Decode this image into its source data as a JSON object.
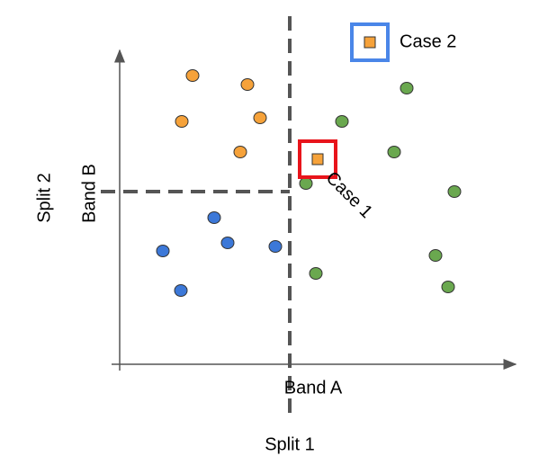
{
  "legend": {
    "label": "Case 2"
  },
  "annotation": {
    "label": "Case 1"
  },
  "axes": {
    "x_label": "Band A",
    "y_label": "Band B"
  },
  "splits": {
    "vertical": "Split 1",
    "horizontal": "Split 2"
  }
}
